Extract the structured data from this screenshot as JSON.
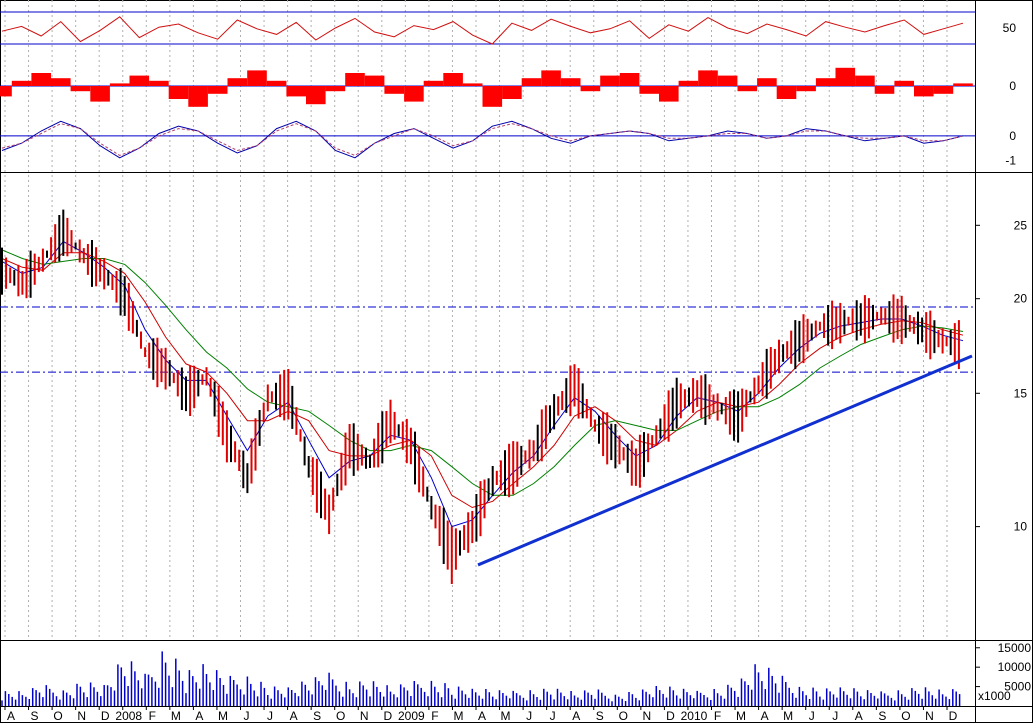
{
  "chart_data": [
    {
      "panel": "oscillator-1",
      "type": "line",
      "ticks": [
        {
          "label": "50",
          "value": 50
        }
      ],
      "reference_lines": [
        70,
        30
      ],
      "series": [
        {
          "color": "#d01010",
          "values": [
            46,
            52,
            40,
            58,
            33,
            47,
            64,
            38,
            51,
            55,
            44,
            36,
            60,
            49,
            42,
            57,
            35,
            50,
            62,
            45,
            39,
            53,
            48,
            58,
            41,
            30,
            56,
            47,
            61,
            52,
            44,
            49,
            59,
            37,
            54,
            46,
            63,
            50,
            43,
            55,
            48,
            40,
            58,
            51,
            45,
            53,
            60,
            42,
            49,
            56
          ]
        }
      ]
    },
    {
      "panel": "histogram-oscillator",
      "type": "bar",
      "ticks": [
        {
          "label": "0",
          "value": 0
        }
      ],
      "series": [
        {
          "color": "#ff0000",
          "values": [
            -0.4,
            0.2,
            0.5,
            0.3,
            -0.2,
            -0.6,
            0.1,
            0.4,
            0.2,
            -0.5,
            -0.8,
            -0.3,
            0.3,
            0.6,
            0.2,
            -0.4,
            -0.7,
            -0.2,
            0.5,
            0.4,
            -0.3,
            -0.6,
            0.2,
            0.5,
            0.1,
            -0.8,
            -0.5,
            0.3,
            0.6,
            0.3,
            -0.2,
            0.4,
            0.5,
            -0.3,
            -0.6,
            0.2,
            0.6,
            0.4,
            -0.2,
            0.3,
            -0.5,
            -0.2,
            0.3,
            0.7,
            0.4,
            -0.3,
            0.2,
            -0.4,
            -0.3,
            0.1
          ]
        }
      ]
    },
    {
      "panel": "oscillator-2",
      "type": "line",
      "ticks": [
        {
          "label": "0",
          "value": 0
        },
        {
          "label": "-1",
          "value": -1
        }
      ],
      "series": [
        {
          "color": "#0000aa",
          "values": [
            -0.6,
            -0.3,
            0.2,
            0.6,
            0.3,
            -0.4,
            -0.9,
            -0.5,
            0.1,
            0.4,
            0.2,
            -0.3,
            -0.7,
            -0.4,
            0.3,
            0.6,
            0.2,
            -0.6,
            -0.9,
            -0.3,
            0.1,
            0.3,
            -0.1,
            -0.5,
            -0.2,
            0.4,
            0.6,
            0.3,
            -0.1,
            -0.3,
            0.0,
            0.1,
            0.2,
            0.1,
            -0.2,
            -0.1,
            0.0,
            0.2,
            0.1,
            -0.1,
            0.0,
            0.3,
            0.2,
            0.0,
            -0.2,
            -0.1,
            0.0,
            -0.3,
            -0.2,
            0.0
          ]
        },
        {
          "color": "#b04070",
          "values": [
            -0.5,
            -0.3,
            0.1,
            0.5,
            0.3,
            -0.3,
            -0.8,
            -0.5,
            0.0,
            0.3,
            0.2,
            -0.2,
            -0.6,
            -0.4,
            0.2,
            0.5,
            0.2,
            -0.5,
            -0.8,
            -0.3,
            0.0,
            0.3,
            0.0,
            -0.4,
            -0.2,
            0.3,
            0.5,
            0.3,
            0.0,
            -0.2,
            0.0,
            0.1,
            0.2,
            0.1,
            -0.1,
            -0.1,
            0.0,
            0.1,
            0.1,
            -0.1,
            0.0,
            0.2,
            0.2,
            0.0,
            -0.1,
            -0.1,
            0.0,
            -0.2,
            -0.2,
            0.0
          ]
        }
      ]
    },
    {
      "panel": "price",
      "type": "line",
      "scale": "log",
      "ylim": [
        8,
        27
      ],
      "ticks": [
        {
          "label": "25",
          "value": 25
        },
        {
          "label": "20",
          "value": 20
        },
        {
          "label": "15",
          "value": 15
        },
        {
          "label": "10",
          "value": 10
        }
      ],
      "reference_lines": [
        19.5,
        16.0
      ],
      "trendline": {
        "start": [
          "2009-04",
          8.9
        ],
        "end": [
          "2011-01",
          16.8
        ]
      },
      "x_labels": [
        "A",
        "S",
        "O",
        "N",
        "D",
        "2008",
        "F",
        "M",
        "A",
        "M",
        "J",
        "J",
        "A",
        "S",
        "O",
        "N",
        "D",
        "2009",
        "F",
        "M",
        "A",
        "M",
        "J",
        "J",
        "A",
        "S",
        "O",
        "N",
        "D",
        "2010",
        "F",
        "M",
        "A",
        "M",
        "J",
        "J",
        "A",
        "S",
        "O",
        "N",
        "D"
      ],
      "series": [
        {
          "name": "",
          "color": "#e00000",
          "role": "price-bars",
          "values": [
            21.8,
            21.0,
            22.5,
            24.5,
            22.8,
            21.6,
            20.2,
            17.0,
            16.2,
            15.0,
            15.8,
            13.2,
            11.6,
            14.8,
            15.0,
            12.0,
            10.4,
            12.8,
            12.2,
            13.8,
            12.8,
            10.6,
            9.2,
            10.0,
            11.5,
            12.0,
            12.6,
            14.2,
            15.4,
            13.6,
            12.8,
            12.0,
            13.2,
            14.6,
            15.0,
            14.4,
            14.0,
            15.4,
            16.8,
            17.6,
            18.4,
            18.6,
            18.8,
            19.0,
            18.8,
            18.2,
            17.6,
            17.4
          ]
        },
        {
          "name": "",
          "color": "#0000cc",
          "values": [
            22.4,
            21.6,
            22.0,
            23.8,
            23.0,
            22.0,
            20.8,
            18.2,
            16.6,
            15.6,
            15.6,
            14.0,
            12.6,
            14.0,
            14.6,
            13.0,
            11.6,
            12.2,
            12.4,
            13.2,
            13.0,
            11.6,
            10.0,
            10.2,
            11.0,
            11.8,
            12.4,
            13.6,
            14.8,
            14.2,
            13.2,
            12.4,
            12.8,
            14.0,
            14.8,
            14.6,
            14.2,
            15.0,
            16.2,
            17.2,
            18.0,
            18.4,
            18.6,
            18.8,
            18.8,
            18.4,
            17.9,
            17.6
          ]
        },
        {
          "name": "",
          "color": "#cc0000",
          "values": [
            22.6,
            22.0,
            21.8,
            23.0,
            23.0,
            22.4,
            21.6,
            19.8,
            17.8,
            16.4,
            16.0,
            15.0,
            13.8,
            13.8,
            14.2,
            13.8,
            12.6,
            12.4,
            12.4,
            12.8,
            13.0,
            12.4,
            11.0,
            10.6,
            10.8,
            11.4,
            12.0,
            12.8,
            14.0,
            14.4,
            13.8,
            13.0,
            12.8,
            13.4,
            14.2,
            14.6,
            14.4,
            14.6,
            15.4,
            16.4,
            17.2,
            17.8,
            18.2,
            18.5,
            18.7,
            18.6,
            18.2,
            17.9
          ]
        },
        {
          "name": "",
          "color": "#008000",
          "values": [
            23.2,
            22.6,
            22.2,
            22.4,
            22.6,
            22.6,
            22.2,
            21.0,
            19.6,
            18.2,
            17.0,
            16.2,
            15.2,
            14.6,
            14.4,
            14.2,
            13.6,
            13.0,
            12.6,
            12.6,
            12.8,
            12.6,
            12.0,
            11.4,
            11.0,
            11.0,
            11.4,
            12.0,
            12.8,
            13.6,
            13.8,
            13.6,
            13.4,
            13.4,
            13.8,
            14.2,
            14.4,
            14.4,
            14.8,
            15.4,
            16.2,
            16.8,
            17.4,
            17.8,
            18.2,
            18.4,
            18.3,
            18.1
          ]
        }
      ]
    },
    {
      "panel": "volume",
      "type": "bar",
      "ticks": [
        {
          "label": "15000",
          "value": 15000
        },
        {
          "label": "10000",
          "value": 10000
        },
        {
          "label": "5000",
          "value": 5000
        }
      ],
      "unit_label": "x1000",
      "series": [
        {
          "color": "#0000cc",
          "values": [
            3200,
            2800,
            4100,
            3600,
            5200,
            4400,
            9800,
            6200,
            12500,
            7400,
            8200,
            5600,
            6800,
            4200,
            3900,
            5100,
            6400,
            4800,
            5500,
            3700,
            4600,
            5800,
            4300,
            3600,
            3100,
            2900,
            3400,
            3800,
            2700,
            3300,
            2600,
            3100,
            4200,
            3500,
            2900,
            3700,
            5200,
            8600,
            6100,
            4400,
            3600,
            3900,
            3200,
            2800,
            3400,
            4100,
            3000,
            3500
          ]
        }
      ]
    }
  ]
}
